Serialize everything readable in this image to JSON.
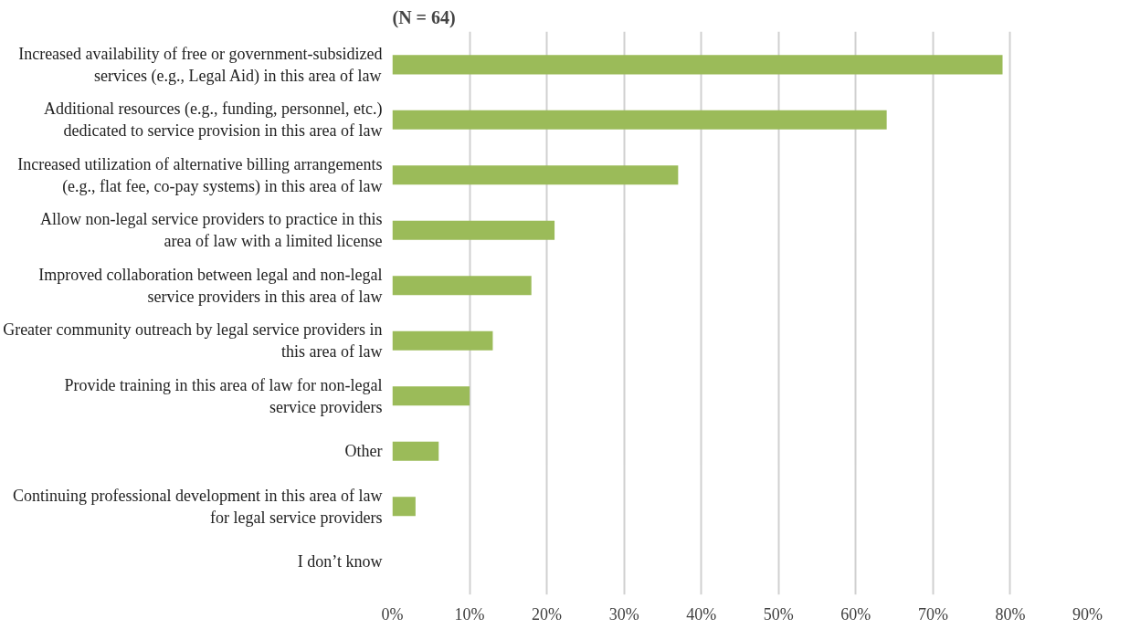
{
  "chart_data": {
    "type": "bar",
    "orientation": "horizontal",
    "title": "(N = 64)",
    "categories": [
      "Increased availability of free or government-subsidized services (e.g., Legal Aid) in this area of law",
      "Additional resources (e.g., funding, personnel, etc.) dedicated to service provision in this area of law",
      "Increased utilization of alternative billing arrangements (e.g., flat fee, co-pay systems) in this area of law",
      "Allow non-legal service providers to practice in this area of law with a limited license",
      "Improved collaboration between legal and non-legal service providers in this area of law",
      "Greater community outreach by legal service providers in this area of law",
      "Provide training in this area of law for non-legal service providers",
      "Other",
      "Continuing professional development in this area of law for legal service providers",
      "I don’t know"
    ],
    "values": [
      79,
      64,
      37,
      21,
      18,
      13,
      10,
      6,
      3,
      0
    ],
    "color": "#9bbb59",
    "xlim": [
      0,
      90
    ],
    "xticks": [
      {
        "value": 0,
        "label": "0%"
      },
      {
        "value": 10,
        "label": "10%"
      },
      {
        "value": 20,
        "label": "20%"
      },
      {
        "value": 30,
        "label": "30%"
      },
      {
        "value": 40,
        "label": "40%"
      },
      {
        "value": 50,
        "label": "50%"
      },
      {
        "value": 60,
        "label": "60%"
      },
      {
        "value": 70,
        "label": "70%"
      },
      {
        "value": 80,
        "label": "80%"
      },
      {
        "value": 90,
        "label": "90%"
      }
    ],
    "grid": "x"
  }
}
